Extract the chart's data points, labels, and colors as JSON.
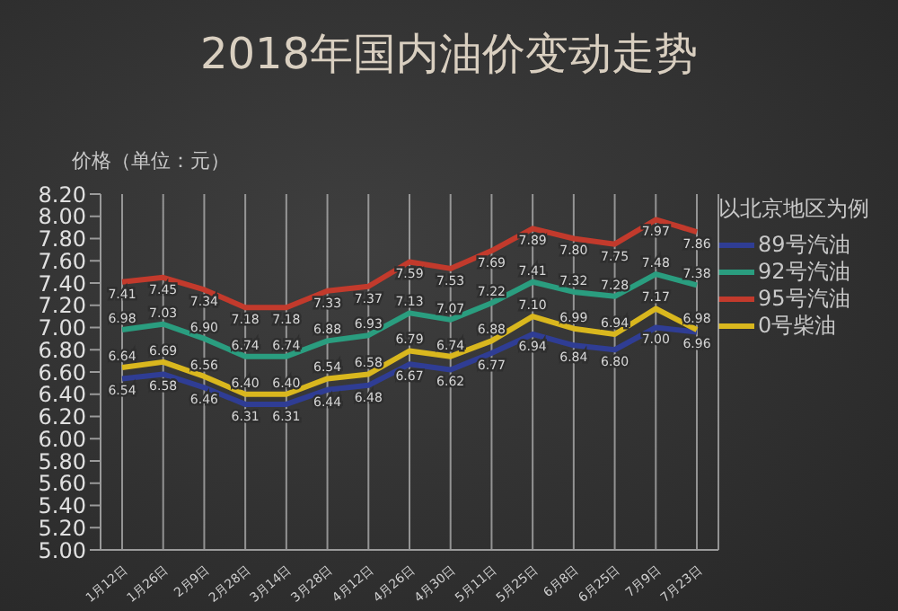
{
  "chart_data": {
    "type": "line",
    "title": "2018年国内油价变动走势",
    "ylabel": "价格（单位：元）",
    "legend_title": "以北京地区为例",
    "categories": [
      "1月12日",
      "1月26日",
      "2月9日",
      "2月28日",
      "3月14日",
      "3月28日",
      "4月12日",
      "4月26日",
      "4月30日",
      "5月11日",
      "5月25日",
      "6月8日",
      "6月25日",
      "7月9日",
      "7月23日"
    ],
    "series": [
      {
        "name": "89号汽油",
        "color": "#2f3d94",
        "values": [
          6.54,
          6.58,
          6.46,
          6.31,
          6.31,
          6.44,
          6.48,
          6.67,
          6.62,
          6.77,
          6.94,
          6.84,
          6.8,
          7.0,
          6.96
        ],
        "value_labels": [
          "6.54",
          "6.58",
          "6.46",
          "6.31",
          "6.31",
          "6.44",
          "6.48",
          "6.67",
          "6.62",
          "6.77",
          "6.94",
          "6.84",
          "6.80",
          "7.00",
          "6.96"
        ]
      },
      {
        "name": "92号汽油",
        "color": "#2a9d7f",
        "values": [
          6.98,
          7.03,
          6.9,
          6.74,
          6.74,
          6.88,
          6.93,
          7.13,
          7.07,
          7.22,
          7.41,
          7.32,
          7.28,
          7.48,
          7.38
        ],
        "value_labels": [
          "6.98",
          "7.03",
          "6.90",
          "6.74",
          "6.74",
          "6.88",
          "6.93",
          "7.13",
          "7.07",
          "7.22",
          "7.41",
          "7.32",
          "7.28",
          "7.48",
          "7.38"
        ]
      },
      {
        "name": "95号汽油",
        "color": "#c23a2c",
        "values": [
          7.41,
          7.45,
          7.34,
          7.18,
          7.18,
          7.33,
          7.37,
          7.59,
          7.53,
          7.69,
          7.89,
          7.8,
          7.75,
          7.97,
          7.86
        ],
        "value_labels": [
          "7.41",
          "7.45",
          "7.34",
          "7.18",
          "7.18",
          "7.33",
          "7.37",
          "7.59",
          "7.53",
          "7.69",
          "7.89",
          "7.80",
          "7.75",
          "7.97",
          "7.86"
        ]
      },
      {
        "name": "0号柴油",
        "color": "#d9b71e",
        "values": [
          6.64,
          6.69,
          6.56,
          6.4,
          6.4,
          6.54,
          6.58,
          6.79,
          6.74,
          6.88,
          7.1,
          6.99,
          6.94,
          7.17,
          6.98
        ],
        "value_labels": [
          "6.64",
          "6.69",
          "6.56",
          "6.40",
          "6.40",
          "6.54",
          "6.58",
          "6.79",
          "6.74",
          "6.88",
          "7.10",
          "6.99",
          "6.94",
          "7.17",
          "6.98"
        ]
      }
    ],
    "ylim": [
      5,
      8.2
    ],
    "yticks": [
      {
        "value": 5,
        "label": "5.00"
      },
      {
        "value": 5.2,
        "label": "5.20"
      },
      {
        "value": 5.4,
        "label": "5.40"
      },
      {
        "value": 5.6,
        "label": "5.60"
      },
      {
        "value": 5.8,
        "label": "5.80"
      },
      {
        "value": 6,
        "label": "6.00"
      },
      {
        "value": 6.2,
        "label": "6.20"
      },
      {
        "value": 6.4,
        "label": "6.40"
      },
      {
        "value": 6.6,
        "label": "6.60"
      },
      {
        "value": 6.8,
        "label": "6.80"
      },
      {
        "value": 7,
        "label": "7.00"
      },
      {
        "value": 7.2,
        "label": "7.20"
      },
      {
        "value": 7.4,
        "label": "7.40"
      },
      {
        "value": 7.6,
        "label": "7.60"
      },
      {
        "value": 7.8,
        "label": "7.80"
      },
      {
        "value": 8,
        "label": "8.00"
      },
      {
        "value": 8.2,
        "label": "8.20"
      }
    ],
    "grid": "x",
    "legend": "right",
    "marker": "none",
    "line_style": "solid"
  }
}
